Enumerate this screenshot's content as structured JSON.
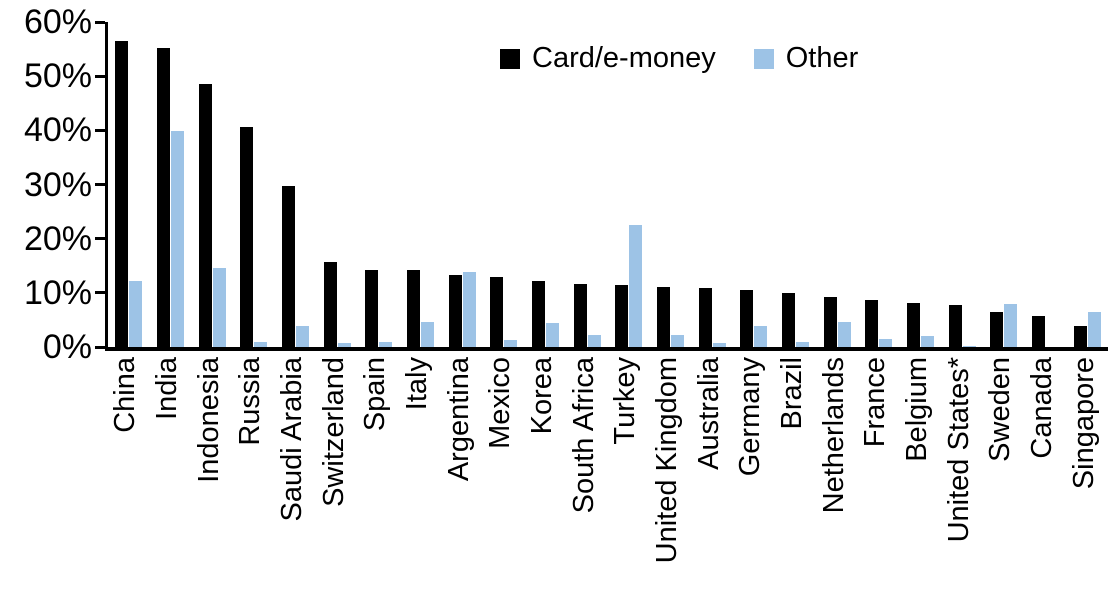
{
  "chart_data": {
    "type": "bar",
    "title": "",
    "xlabel": "",
    "ylabel": "",
    "categories": [
      "China",
      "India",
      "Indonesia",
      "Russia",
      "Saudi Arabia",
      "Switzerland",
      "Spain",
      "Italy",
      "Argentina",
      "Mexico",
      "Korea",
      "South Africa",
      "Turkey",
      "United Kingdom",
      "Australia",
      "Germany",
      "Brazil",
      "Netherlands",
      "France",
      "Belgium",
      "United States*",
      "Sweden",
      "Canada",
      "Singapore"
    ],
    "series": [
      {
        "name": "Card/e-money",
        "color": "#000000",
        "values": [
          56.5,
          55.2,
          48.5,
          40.6,
          29.8,
          15.6,
          14.3,
          14.2,
          13.2,
          12.9,
          12.1,
          11.7,
          11.5,
          11.0,
          10.8,
          10.5,
          9.9,
          9.2,
          8.7,
          8.1,
          7.8,
          6.4,
          5.8,
          3.8
        ]
      },
      {
        "name": "Other",
        "color": "#9DC3E6",
        "values": [
          12.2,
          39.8,
          14.5,
          0.9,
          3.8,
          0.7,
          1.0,
          4.6,
          13.8,
          1.3,
          4.4,
          2.3,
          22.5,
          2.3,
          0.8,
          3.8,
          1.0,
          4.7,
          1.5,
          2.0,
          0.2,
          8.0,
          0.0,
          6.5
        ]
      }
    ],
    "y_axis": {
      "min": 0,
      "max": 60,
      "ticks": [
        {
          "label": "0%",
          "value": 0
        },
        {
          "label": "10%",
          "value": 10
        },
        {
          "label": "20%",
          "value": 20
        },
        {
          "label": "30%",
          "value": 30
        },
        {
          "label": "40%",
          "value": 40
        },
        {
          "label": "50%",
          "value": 50
        },
        {
          "label": "60%",
          "value": 60
        }
      ]
    },
    "grid": false,
    "legend_position": "top-center",
    "x_label_rotation": -90
  }
}
